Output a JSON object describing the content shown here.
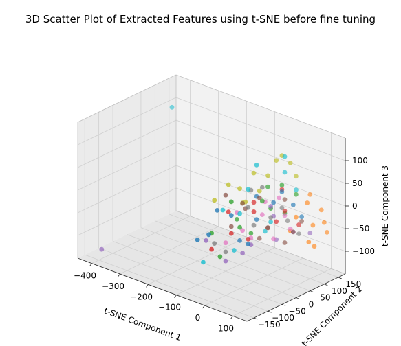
{
  "chart_data": {
    "type": "scatter",
    "projection": "3d",
    "title": "3D Scatter Plot of Extracted Features using t-SNE before fine tuning",
    "xlabel": "t-SNE Component 1",
    "ylabel": "t-SNE Component 2",
    "zlabel": "t-SNE Component 3",
    "xlim": [
      -450,
      150
    ],
    "ylim": [
      -175,
      175
    ],
    "zlim": [
      -150,
      150
    ],
    "xticks": [
      "−400",
      "−300",
      "−200",
      "−100",
      "0",
      "100"
    ],
    "yticks": [
      "−150",
      "−100",
      "−50",
      "0",
      "50",
      "100",
      "150"
    ],
    "zticks": [
      "−100",
      "−50",
      "0",
      "50",
      "100"
    ],
    "grid": true,
    "palette": [
      "#1f77b4",
      "#ff7f0e",
      "#2ca02c",
      "#d62728",
      "#9467bd",
      "#8c564b",
      "#e377c2",
      "#7f7f7f",
      "#bcbd22",
      "#17becf"
    ],
    "series": [
      {
        "color": "#1f77b4",
        "points": [
          [
            -60,
            -100,
            -30
          ],
          [
            -20,
            -60,
            10
          ],
          [
            30,
            40,
            20
          ],
          [
            -80,
            -120,
            -40
          ],
          [
            10,
            0,
            -10
          ],
          [
            40,
            60,
            40
          ],
          [
            -30,
            -20,
            -60
          ],
          [
            60,
            80,
            10
          ],
          [
            -10,
            20,
            30
          ],
          [
            20,
            -40,
            -50
          ],
          [
            -50,
            -80,
            20
          ],
          [
            70,
            100,
            -20
          ]
        ]
      },
      {
        "color": "#ff7f0e",
        "points": [
          [
            90,
            120,
            -40
          ],
          [
            100,
            140,
            -10
          ],
          [
            110,
            150,
            -60
          ],
          [
            80,
            110,
            10
          ],
          [
            60,
            90,
            -20
          ],
          [
            120,
            130,
            -30
          ],
          [
            95,
            100,
            -70
          ],
          [
            70,
            130,
            20
          ],
          [
            50,
            80,
            -50
          ],
          [
            105,
            110,
            -80
          ]
        ]
      },
      {
        "color": "#2ca02c",
        "points": [
          [
            -40,
            -80,
            -80
          ],
          [
            -10,
            -40,
            -20
          ],
          [
            20,
            10,
            30
          ],
          [
            50,
            50,
            60
          ],
          [
            -60,
            -90,
            -30
          ],
          [
            0,
            -10,
            -40
          ],
          [
            30,
            30,
            10
          ],
          [
            -20,
            -60,
            40
          ],
          [
            40,
            70,
            -10
          ],
          [
            -30,
            -30,
            -10
          ],
          [
            10,
            40,
            50
          ],
          [
            60,
            90,
            30
          ]
        ]
      },
      {
        "color": "#d62728",
        "points": [
          [
            -20,
            -60,
            -30
          ],
          [
            10,
            -10,
            10
          ],
          [
            40,
            40,
            -20
          ],
          [
            -50,
            -100,
            -60
          ],
          [
            30,
            70,
            40
          ],
          [
            0,
            -20,
            -50
          ],
          [
            60,
            100,
            -40
          ],
          [
            -10,
            10,
            20
          ],
          [
            50,
            60,
            0
          ],
          [
            -40,
            -50,
            10
          ]
        ]
      },
      {
        "color": "#9467bd",
        "points": [
          [
            -420,
            -120,
            -140
          ],
          [
            30,
            40,
            -10
          ],
          [
            -30,
            -70,
            -90
          ],
          [
            10,
            -20,
            -60
          ],
          [
            60,
            80,
            -50
          ],
          [
            -60,
            -110,
            -40
          ],
          [
            40,
            20,
            20
          ],
          [
            -10,
            -30,
            -80
          ],
          [
            20,
            60,
            -70
          ],
          [
            80,
            120,
            -60
          ]
        ]
      },
      {
        "color": "#8c564b",
        "points": [
          [
            -10,
            -30,
            30
          ],
          [
            30,
            20,
            -30
          ],
          [
            60,
            80,
            -50
          ],
          [
            -40,
            -60,
            50
          ],
          [
            10,
            40,
            -40
          ],
          [
            50,
            60,
            -70
          ],
          [
            -20,
            -10,
            10
          ],
          [
            40,
            70,
            20
          ],
          [
            70,
            100,
            -30
          ],
          [
            0,
            20,
            -60
          ],
          [
            -30,
            -50,
            -20
          ],
          [
            20,
            0,
            40
          ]
        ]
      },
      {
        "color": "#e377c2",
        "points": [
          [
            20,
            10,
            0
          ],
          [
            -10,
            -30,
            -30
          ],
          [
            40,
            50,
            30
          ],
          [
            0,
            -10,
            -50
          ],
          [
            30,
            40,
            -60
          ],
          [
            -20,
            -40,
            10
          ],
          [
            50,
            60,
            -10
          ],
          [
            10,
            30,
            20
          ],
          [
            -30,
            -70,
            -50
          ],
          [
            60,
            70,
            -40
          ]
        ]
      },
      {
        "color": "#7f7f7f",
        "points": [
          [
            -30,
            -70,
            -70
          ],
          [
            0,
            -20,
            20
          ],
          [
            30,
            30,
            -10
          ],
          [
            60,
            100,
            -60
          ],
          [
            -50,
            -90,
            -50
          ],
          [
            20,
            10,
            60
          ],
          [
            40,
            80,
            -30
          ],
          [
            -10,
            0,
            50
          ],
          [
            50,
            50,
            10
          ],
          [
            10,
            -10,
            -20
          ]
        ]
      },
      {
        "color": "#bcbd22",
        "points": [
          [
            -60,
            -80,
            40
          ],
          [
            -20,
            -30,
            60
          ],
          [
            0,
            0,
            90
          ],
          [
            30,
            50,
            110
          ],
          [
            -40,
            -50,
            70
          ],
          [
            20,
            30,
            80
          ],
          [
            50,
            80,
            100
          ],
          [
            -10,
            -20,
            30
          ],
          [
            40,
            60,
            120
          ],
          [
            10,
            10,
            50
          ],
          [
            60,
            90,
            70
          ],
          [
            -30,
            -10,
            20
          ]
        ]
      },
      {
        "color": "#17becf",
        "points": [
          [
            -380,
            90,
            120
          ],
          [
            -70,
            -110,
            -90
          ],
          [
            -20,
            -50,
            -70
          ],
          [
            10,
            0,
            110
          ],
          [
            50,
            60,
            120
          ],
          [
            -40,
            -70,
            20
          ],
          [
            30,
            30,
            -20
          ],
          [
            0,
            -20,
            60
          ],
          [
            60,
            90,
            40
          ],
          [
            -10,
            -40,
            10
          ],
          [
            40,
            70,
            80
          ],
          [
            20,
            20,
            -40
          ]
        ]
      }
    ]
  }
}
